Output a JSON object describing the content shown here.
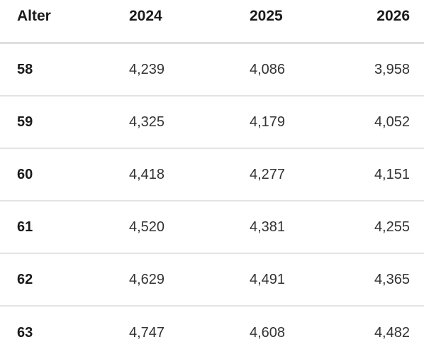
{
  "table": {
    "headers": [
      "Alter",
      "2024",
      "2025",
      "2026"
    ],
    "rows": [
      [
        "58",
        "4,239",
        "4,086",
        "3,958"
      ],
      [
        "59",
        "4,325",
        "4,179",
        "4,052"
      ],
      [
        "60",
        "4,418",
        "4,277",
        "4,151"
      ],
      [
        "61",
        "4,520",
        "4,381",
        "4,255"
      ],
      [
        "62",
        "4,629",
        "4,491",
        "4,365"
      ],
      [
        "63",
        "4,747",
        "4,608",
        "4,482"
      ]
    ]
  }
}
